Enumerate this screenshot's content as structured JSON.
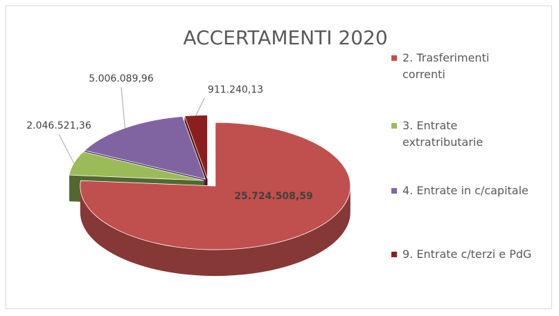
{
  "chart_data": {
    "type": "pie",
    "title": "ACCERTAMENTI 2020",
    "labels": [
      "2. Trasferimenti correnti",
      "3. Entrate extratributarie",
      "4. Entrate in c/capitale",
      "9. Entrate c/terzi e PdG"
    ],
    "values": [
      25724508.59,
      2046521.36,
      5006089.96,
      911240.13
    ],
    "value_labels": [
      "25.724.508,59",
      "2.046.521,36",
      "5.006.089,96",
      "911.240,13"
    ],
    "colors": [
      "#c0504d",
      "#9bbb59",
      "#8064a2",
      "#8b1f1f"
    ],
    "legend": "right"
  }
}
